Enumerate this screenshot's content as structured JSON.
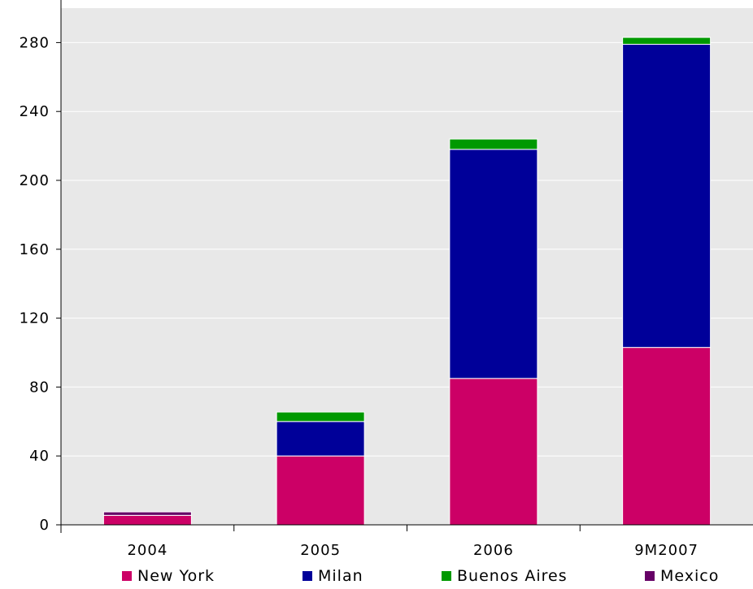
{
  "chart_data": {
    "type": "bar",
    "stacked": true,
    "title": "",
    "xlabel": "",
    "ylabel": "",
    "categories": [
      "2004",
      "2005",
      "2006",
      "9M2007"
    ],
    "series": [
      {
        "name": "New York",
        "color": "#cc0066",
        "values": [
          5.5,
          40,
          85,
          103
        ]
      },
      {
        "name": "Milan",
        "color": "#000099",
        "values": [
          0,
          20,
          133,
          176
        ]
      },
      {
        "name": "Buenos Aires",
        "color": "#009900",
        "values": [
          0,
          5.5,
          6,
          4
        ]
      },
      {
        "name": "Mexico",
        "color": "#660066",
        "values": [
          2,
          0,
          0,
          0
        ]
      }
    ],
    "ylim": [
      0,
      300
    ],
    "yticks": [
      0,
      40,
      80,
      120,
      160,
      200,
      240,
      280
    ],
    "grid": true,
    "legend_position": "bottom",
    "plot_background": "#e8e8e8"
  }
}
